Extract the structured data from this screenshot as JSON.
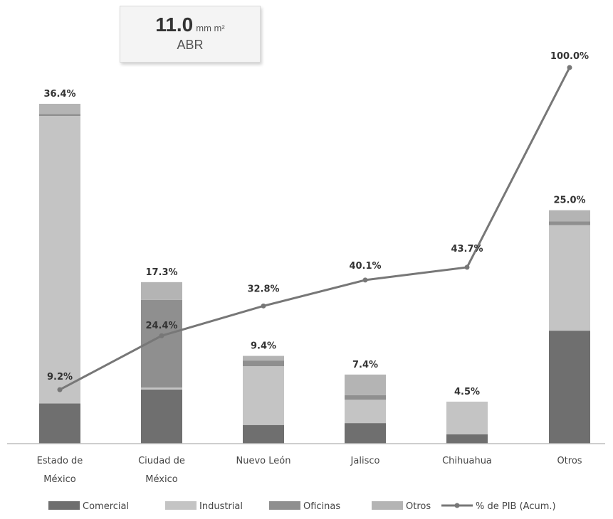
{
  "badge": {
    "value": "11.0",
    "unit": "mm m²",
    "period": "ABR"
  },
  "colors": {
    "comercial": "#6f6f6f",
    "industrial": "#c4c4c4",
    "oficinas": "#8f8f8f",
    "otros": "#b4b4b4",
    "line": "#777777"
  },
  "chart_data": {
    "type": "bar",
    "stacked": true,
    "categories": [
      [
        "Estado de",
        "México"
      ],
      [
        "Ciudad de",
        "México"
      ],
      [
        "Nuevo León"
      ],
      [
        "Jalisco"
      ],
      [
        "Chihuahua"
      ],
      [
        "Otros"
      ]
    ],
    "bar_totals": [
      36.4,
      17.3,
      9.4,
      7.4,
      4.5,
      25.0
    ],
    "total_labels": [
      "36.4%",
      "17.3%",
      "9.4%",
      "7.4%",
      "4.5%",
      "25.0%"
    ],
    "series": [
      {
        "name": "Comercial",
        "values": [
          4.3,
          5.8,
          2.0,
          2.2,
          1.0,
          12.1
        ]
      },
      {
        "name": "Industrial",
        "values": [
          30.8,
          0.2,
          6.3,
          2.5,
          3.5,
          11.3
        ]
      },
      {
        "name": "Oficinas",
        "values": [
          0.2,
          9.4,
          0.6,
          0.5,
          0.0,
          0.4
        ]
      },
      {
        "name": "Otros",
        "values": [
          1.1,
          1.9,
          0.5,
          2.2,
          0.0,
          1.2
        ]
      }
    ],
    "line": {
      "name": "% de PIB (Acum.)",
      "values": [
        9.2,
        24.4,
        32.8,
        40.1,
        43.7,
        100.0
      ],
      "labels": [
        "9.2%",
        "24.4%",
        "32.8%",
        "40.1%",
        "43.7%",
        "100.0%"
      ]
    },
    "y_bar_range": [
      0,
      36.4
    ],
    "y_line_range": [
      0,
      100
    ],
    "grid": false,
    "legend_position": "bottom"
  }
}
